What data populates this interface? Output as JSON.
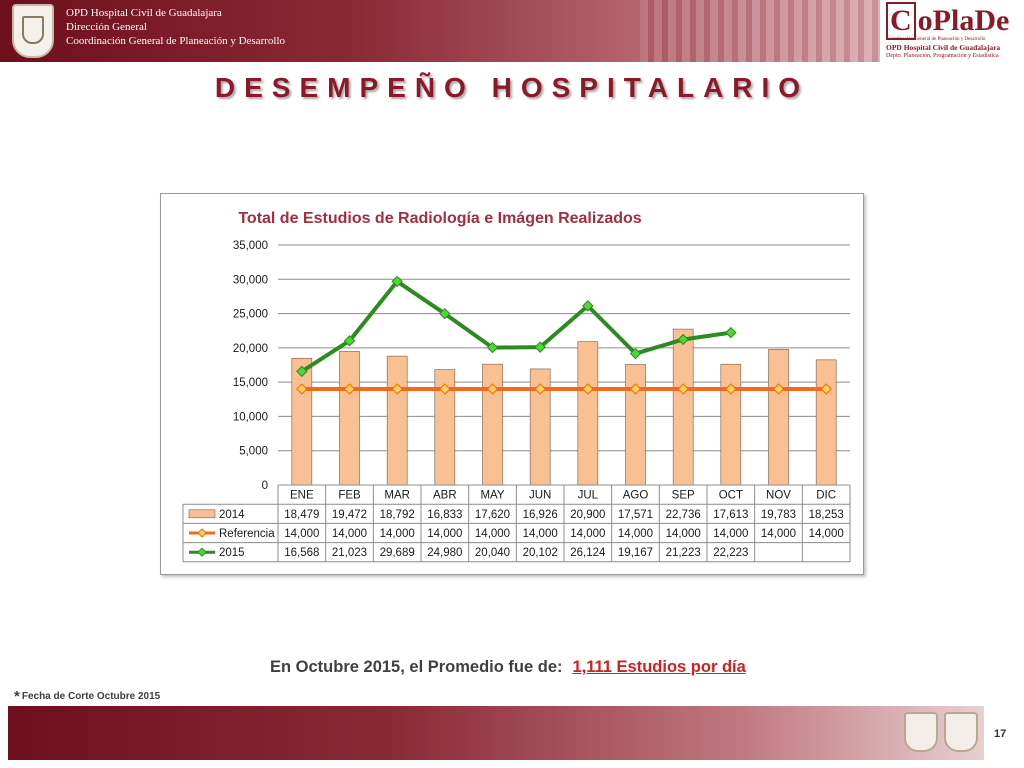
{
  "header": {
    "line1": "OPD Hospital Civil de Guadalajara",
    "line2": "Dirección General",
    "line3": "Coordinación General de Planeación y Desarrollo",
    "logo_text": "CoPlaDe",
    "logo_sub1": "Coordinación General de Planeación y Desarrollo",
    "logo_sub2": "OPD Hospital Civil de Guadalajara",
    "logo_sub3": "Depto. Planeación, Programación y Estadística",
    "crest_icon": "university-crest-icon"
  },
  "page_title": "DESEMPEÑO HOSPITALARIO",
  "chart_data": {
    "type": "bar",
    "title": "Total de Estudios de Radiología e Imágen Realizados",
    "categories": [
      "ENE",
      "FEB",
      "MAR",
      "ABR",
      "MAY",
      "JUN",
      "JUL",
      "AGO",
      "SEP",
      "OCT",
      "NOV",
      "DIC"
    ],
    "ylim": [
      0,
      35000
    ],
    "yticks": [
      "0",
      "5,000",
      "10,000",
      "15,000",
      "20,000",
      "25,000",
      "30,000",
      "35,000"
    ],
    "grid": true,
    "series": [
      {
        "name": "2014",
        "type": "bar",
        "color": "#F9C093",
        "values": [
          18479,
          19472,
          18792,
          16833,
          17620,
          16926,
          20900,
          17571,
          22736,
          17613,
          19783,
          18253
        ],
        "labels": [
          "18,479",
          "19,472",
          "18,792",
          "16,833",
          "17,620",
          "16,926",
          "20,900",
          "17,571",
          "22,736",
          "17,613",
          "19,783",
          "18,253"
        ]
      },
      {
        "name": "Referencia",
        "type": "line",
        "color": "#F26B1D",
        "marker_color": "#FFD24D",
        "values": [
          14000,
          14000,
          14000,
          14000,
          14000,
          14000,
          14000,
          14000,
          14000,
          14000,
          14000,
          14000
        ],
        "labels": [
          "14,000",
          "14,000",
          "14,000",
          "14,000",
          "14,000",
          "14,000",
          "14,000",
          "14,000",
          "14,000",
          "14,000",
          "14,000",
          "14,000"
        ]
      },
      {
        "name": "2015",
        "type": "line",
        "color": "#2E8B22",
        "marker_color": "#4CD836",
        "values": [
          16568,
          21023,
          29689,
          24980,
          20040,
          20102,
          26124,
          19167,
          21223,
          22223,
          null,
          null
        ],
        "labels": [
          "16,568",
          "21,023",
          "29,689",
          "24,980",
          "20,040",
          "20,102",
          "26,124",
          "19,167",
          "21,223",
          "22,223",
          "",
          ""
        ]
      }
    ]
  },
  "summary": {
    "text": "En Octubre 2015, el Promedio fue de:",
    "value": "1,111  Estudios por día"
  },
  "footnote": {
    "star": "*",
    "text": "Fecha de Corte Octubre 2015"
  },
  "page_number": "17"
}
